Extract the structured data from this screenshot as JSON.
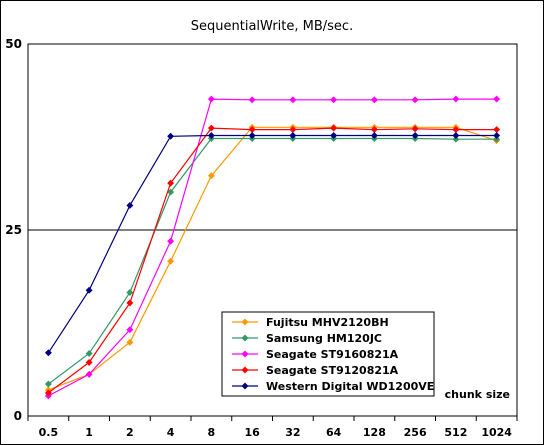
{
  "chart_data": {
    "type": "line",
    "title": "SequentialWrite, MB/sec.",
    "xlabel": "chunk size",
    "ylabel": "",
    "ylim": [
      0,
      50
    ],
    "y_ticks": [
      0,
      25,
      50
    ],
    "grid": "horizontal line at 25",
    "legend_position": "bottom-center",
    "categories": [
      "0.5",
      "1",
      "2",
      "4",
      "8",
      "16",
      "32",
      "64",
      "128",
      "256",
      "512",
      "1024"
    ],
    "series": [
      {
        "name": "Fujitsu MHV2120BH",
        "color": "#FF9900",
        "values": [
          3.5,
          5.6,
          9.9,
          20.8,
          32.3,
          38.8,
          38.8,
          38.8,
          38.8,
          38.8,
          38.8,
          37.0
        ]
      },
      {
        "name": "Samsung HM120JC",
        "color": "#339966",
        "values": [
          4.3,
          8.4,
          16.6,
          30.1,
          37.3,
          37.3,
          37.3,
          37.3,
          37.3,
          37.3,
          37.2,
          37.2
        ]
      },
      {
        "name": "Seagate ST9160821A",
        "color": "#FF00FF",
        "values": [
          2.7,
          5.6,
          11.6,
          23.5,
          42.6,
          42.5,
          42.5,
          42.5,
          42.5,
          42.5,
          42.6,
          42.6
        ]
      },
      {
        "name": "Seagate ST9120821A",
        "color": "#FF0000",
        "values": [
          3.1,
          7.2,
          15.2,
          31.3,
          38.7,
          38.5,
          38.5,
          38.7,
          38.5,
          38.6,
          38.5,
          38.5
        ]
      },
      {
        "name": "Western Digital WD1200VE",
        "color": "#000080",
        "values": [
          8.5,
          16.9,
          28.3,
          37.6,
          37.7,
          37.7,
          37.7,
          37.7,
          37.7,
          37.7,
          37.7,
          37.7
        ]
      }
    ]
  }
}
